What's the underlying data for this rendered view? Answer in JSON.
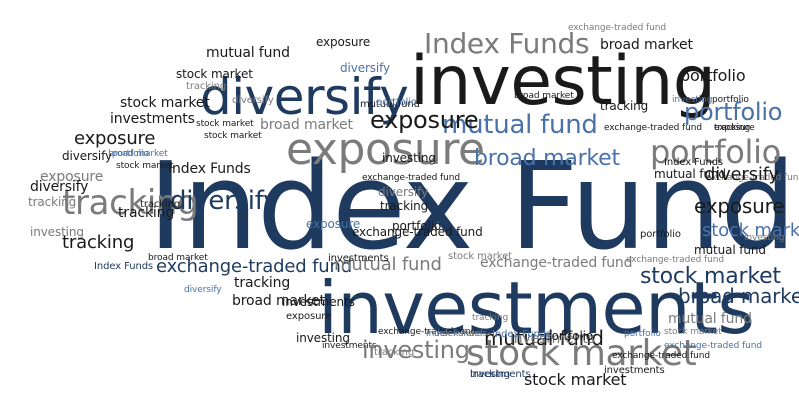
{
  "word_cloud": {
    "title_word": "Index Funds",
    "colors": {
      "navy": "#1f3a5f",
      "blue": "#4a72a8",
      "gray": "#7b7b7b",
      "black": "#1a1a1a",
      "background": "#ffffff"
    },
    "words": [
      "Index Funds",
      "investing",
      "investments",
      "diversify",
      "exposure",
      "stock market",
      "broad market",
      "mutual fund",
      "portfolio",
      "tracking",
      "exchange-traded fund",
      "Index Funds",
      "exchange-traded fund",
      "broad market",
      "mutual fund",
      "exposure",
      "stock market",
      "tracking",
      "portfolio",
      "stock market",
      "diversify",
      "stock market",
      "investments",
      "diversify",
      "portfolio",
      "exposure",
      "broad market",
      "stock market",
      "investing",
      "mutual fund",
      "tracking",
      "exposure",
      "mutual fund",
      "exchange-traded fund",
      "investments",
      "portfolio",
      "broad market",
      "portfolio",
      "tracking",
      "Index Funds",
      "stock market",
      "exposure",
      "portfolio",
      "tracking",
      "broad market",
      "diversify",
      "Index Funds",
      "exposure",
      "investing",
      "exchange-traded fund",
      "diversify",
      "exchange-traded fund",
      "diversify",
      "diversify",
      "tracking",
      "tracking",
      "mutual fund",
      "diversify",
      "tracking",
      "portfolio",
      "exposure",
      "investing",
      "tracking",
      "exchange-traded fund",
      "investing",
      "stock market",
      "Index Funds",
      "broad market",
      "exposure",
      "stock market",
      "mutual fund",
      "exchange-traded fund",
      "portfolio",
      "exchange-traded fund",
      "stock market",
      "broad market",
      "mutual fund",
      "diversify",
      "tracking",
      "mutual fund",
      "investments",
      "broad market",
      "tracking",
      "portfolio",
      "investments",
      "exposure",
      "investing",
      "exchange-traded fund",
      "tracking",
      "investments",
      "investing",
      "Index Funds",
      "exchange-traded fund",
      "portfolio",
      "investments",
      "stock market",
      "investments",
      "Index Funds",
      "Index Funds",
      "tracking",
      "exchange-traded fund",
      "stock market",
      "portfolio",
      "exchange-traded fund"
    ]
  }
}
